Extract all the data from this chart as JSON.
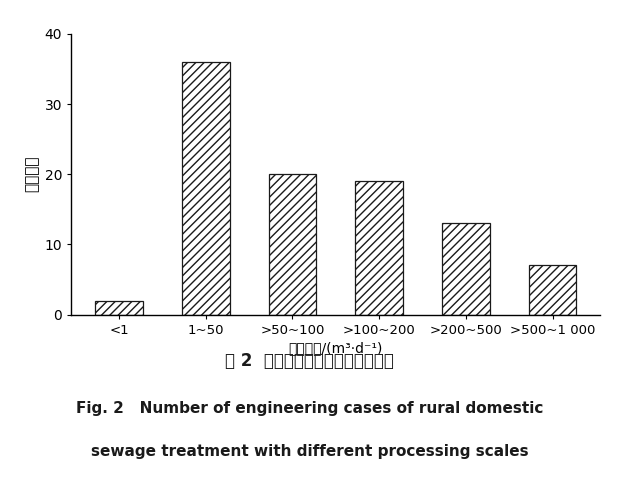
{
  "categories": [
    "<1",
    "1~50",
    ">50~100",
    ">100~200",
    ">200~500",
    ">500~1 000"
  ],
  "values": [
    2,
    36,
    20,
    19,
    13,
    7
  ],
  "bar_color": "#ffffff",
  "bar_edgecolor": "#1a1a1a",
  "hatch": "////",
  "ylim": [
    0,
    40
  ],
  "yticks": [
    0,
    10,
    20,
    30,
    40
  ],
  "ylabel": "工艺数量",
  "xlabel": "处理水量/(m³·d⁻¹)",
  "title_cn": "图 2  不同处理规模的工程案例数量",
  "title_en_line1": "Fig. 2   Number of engineering cases of rural domestic",
  "title_en_line2": "sewage treatment with different processing scales",
  "background_color": "#ffffff",
  "bar_width": 0.55
}
